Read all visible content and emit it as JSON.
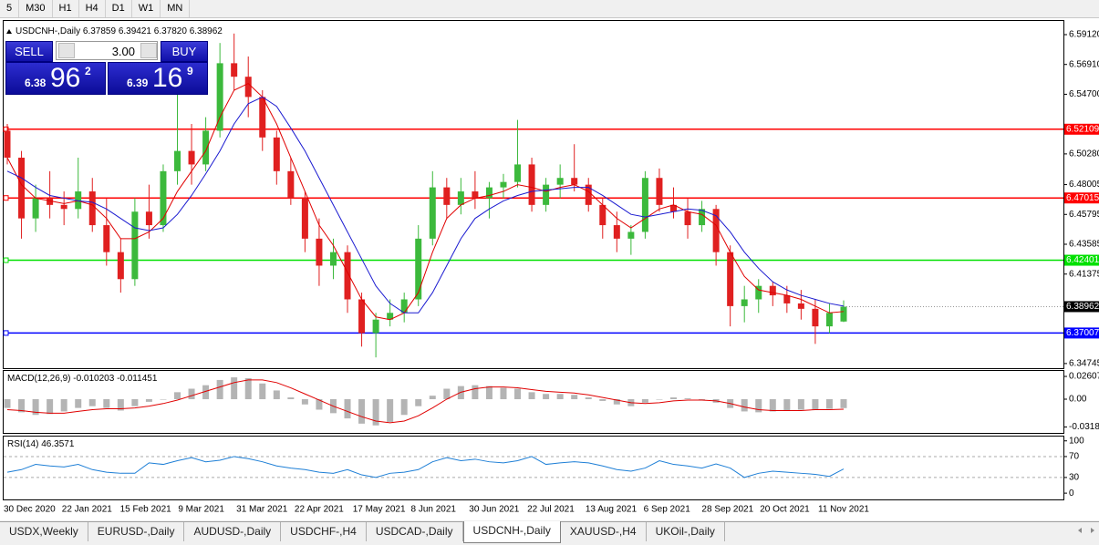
{
  "toolbar": {
    "timeframes": [
      "5",
      "M30",
      "H1",
      "H4",
      "D1",
      "W1",
      "MN"
    ]
  },
  "trade_panel": {
    "sell": "SELL",
    "buy": "BUY",
    "lot": "3.00",
    "bid": {
      "big": "6.38",
      "pips": "96",
      "point": "2"
    },
    "ask": {
      "big": "6.39",
      "pips": "16",
      "point": "9"
    }
  },
  "chart_data": [
    {
      "type": "candlestick",
      "symbol": "USDCNH-,Daily",
      "header_values": [
        "6.37859",
        "6.39421",
        "6.37820",
        "6.38962"
      ],
      "up_color": "#3cb93c",
      "down_color": "#e02020",
      "candles": [
        [
          6.52,
          6.525,
          6.495,
          6.5
        ],
        [
          6.5,
          6.505,
          6.44,
          6.455
        ],
        [
          6.455,
          6.48,
          6.445,
          6.47
        ],
        [
          6.47,
          6.49,
          6.455,
          6.465
        ],
        [
          6.465,
          6.475,
          6.45,
          6.462
        ],
        [
          6.462,
          6.5,
          6.455,
          6.475
        ],
        [
          6.475,
          6.485,
          6.445,
          6.45
        ],
        [
          6.45,
          6.47,
          6.42,
          6.43
        ],
        [
          6.43,
          6.44,
          6.4,
          6.41
        ],
        [
          6.41,
          6.47,
          6.405,
          6.46
        ],
        [
          6.46,
          6.48,
          6.44,
          6.45
        ],
        [
          6.45,
          6.495,
          6.445,
          6.49
        ],
        [
          6.49,
          6.55,
          6.48,
          6.505
        ],
        [
          6.505,
          6.525,
          6.48,
          6.495
        ],
        [
          6.495,
          6.53,
          6.49,
          6.52
        ],
        [
          6.52,
          6.585,
          6.515,
          6.57
        ],
        [
          6.57,
          6.592,
          6.55,
          6.56
        ],
        [
          6.56,
          6.575,
          6.53,
          6.545
        ],
        [
          6.545,
          6.55,
          6.505,
          6.515
        ],
        [
          6.515,
          6.52,
          6.48,
          6.49
        ],
        [
          6.49,
          6.5,
          6.465,
          6.47
        ],
        [
          6.47,
          6.475,
          6.43,
          6.44
        ],
        [
          6.44,
          6.455,
          6.405,
          6.42
        ],
        [
          6.42,
          6.44,
          6.41,
          6.43
        ],
        [
          6.43,
          6.435,
          6.385,
          6.395
        ],
        [
          6.395,
          6.4,
          6.36,
          6.37
        ],
        [
          6.37,
          6.385,
          6.352,
          6.38
        ],
        [
          6.38,
          6.395,
          6.375,
          6.385
        ],
        [
          6.385,
          6.4,
          6.378,
          6.395
        ],
        [
          6.395,
          6.45,
          6.39,
          6.44
        ],
        [
          6.44,
          6.49,
          6.435,
          6.478
        ],
        [
          6.478,
          6.485,
          6.455,
          6.465
        ],
        [
          6.465,
          6.485,
          6.458,
          6.475
        ],
        [
          6.475,
          6.49,
          6.462,
          6.47
        ],
        [
          6.47,
          6.482,
          6.455,
          6.478
        ],
        [
          6.478,
          6.488,
          6.47,
          6.482
        ],
        [
          6.482,
          6.528,
          6.478,
          6.495
        ],
        [
          6.495,
          6.5,
          6.46,
          6.465
        ],
        [
          6.465,
          6.485,
          6.46,
          6.48
        ],
        [
          6.48,
          6.495,
          6.47,
          6.485
        ],
        [
          6.485,
          6.51,
          6.475,
          6.48
        ],
        [
          6.48,
          6.485,
          6.46,
          6.465
        ],
        [
          6.465,
          6.47,
          6.44,
          6.45
        ],
        [
          6.45,
          6.46,
          6.43,
          6.44
        ],
        [
          6.44,
          6.45,
          6.428,
          6.445
        ],
        [
          6.445,
          6.49,
          6.44,
          6.485
        ],
        [
          6.485,
          6.492,
          6.46,
          6.465
        ],
        [
          6.465,
          6.478,
          6.455,
          6.46
        ],
        [
          6.46,
          6.47,
          6.44,
          6.45
        ],
        [
          6.45,
          6.468,
          6.445,
          6.462
        ],
        [
          6.462,
          6.465,
          6.42,
          6.43
        ],
        [
          6.43,
          6.435,
          6.375,
          6.39
        ],
        [
          6.39,
          6.405,
          6.378,
          6.395
        ],
        [
          6.395,
          6.41,
          6.385,
          6.405
        ],
        [
          6.405,
          6.408,
          6.39,
          6.398
        ],
        [
          6.398,
          6.405,
          6.385,
          6.392
        ],
        [
          6.392,
          6.402,
          6.38,
          6.388
        ],
        [
          6.388,
          6.395,
          6.362,
          6.375
        ],
        [
          6.375,
          6.392,
          6.37,
          6.385
        ],
        [
          6.37859,
          6.39421,
          6.3782,
          6.38962
        ]
      ],
      "ma_fast": {
        "color": "#e00000",
        "values": [
          6.5,
          6.48,
          6.47,
          6.468,
          6.466,
          6.468,
          6.465,
          6.455,
          6.44,
          6.44,
          6.445,
          6.455,
          6.475,
          6.49,
          6.505,
          6.53,
          6.55,
          6.555,
          6.545,
          6.525,
          6.5,
          6.475,
          6.45,
          6.435,
          6.415,
          6.395,
          6.382,
          6.38,
          6.385,
          6.4,
          6.43,
          6.455,
          6.465,
          6.47,
          6.472,
          6.475,
          6.48,
          6.478,
          6.475,
          6.478,
          6.48,
          6.475,
          6.465,
          6.455,
          6.448,
          6.455,
          6.462,
          6.465,
          6.46,
          6.458,
          6.45,
          6.43,
          6.412,
          6.402,
          6.4,
          6.398,
          6.395,
          6.39,
          6.385,
          6.386
        ]
      },
      "ma_slow": {
        "color": "#1a1ad0",
        "values": [
          6.49,
          6.485,
          6.478,
          6.472,
          6.47,
          6.468,
          6.467,
          6.462,
          6.455,
          6.448,
          6.446,
          6.448,
          6.458,
          6.472,
          6.488,
          6.505,
          6.525,
          6.54,
          6.545,
          6.538,
          6.522,
          6.505,
          6.485,
          6.465,
          6.445,
          6.425,
          6.405,
          6.392,
          6.385,
          6.385,
          6.4,
          6.42,
          6.44,
          6.455,
          6.462,
          6.468,
          6.472,
          6.475,
          6.476,
          6.477,
          6.478,
          6.478,
          6.472,
          6.465,
          6.458,
          6.456,
          6.458,
          6.46,
          6.462,
          6.461,
          6.457,
          6.445,
          6.43,
          6.418,
          6.408,
          6.402,
          6.398,
          6.395,
          6.392,
          6.39
        ]
      },
      "levels": [
        {
          "value": 6.52109,
          "color": "#ff0000"
        },
        {
          "value": 6.47015,
          "color": "#ff0000"
        },
        {
          "value": 6.42401,
          "color": "#00e000"
        },
        {
          "value": 6.37007,
          "color": "#0000ff"
        }
      ],
      "ylim": [
        6.344,
        6.602
      ],
      "yticks": [
        {
          "value": 6.5912,
          "label": "6.59120"
        },
        {
          "value": 6.5691,
          "label": "6.56910"
        },
        {
          "value": 6.547,
          "label": "6.54700"
        },
        {
          "value": 6.5028,
          "label": "6.50280"
        },
        6.48005,
        6.45795,
        6.43585,
        6.41375,
        6.34745
      ],
      "x_labels": [
        "30 Dec 2020",
        "22 Jan 2021",
        "15 Feb 2021",
        "9 Mar 2021",
        "31 Mar 2021",
        "22 Apr 2021",
        "17 May 2021",
        "8 Jun 2021",
        "30 Jun 2021",
        "22 Jul 2021",
        "13 Aug 2021",
        "6 Sep 2021",
        "28 Sep 2021",
        "20 Oct 2021",
        "11 Nov 2021"
      ]
    },
    {
      "type": "macd",
      "label": "MACD(12,26,9)",
      "bar_color": "#b4b4b4",
      "signal_color": "#e00000",
      "main": [
        -0.01,
        -0.015,
        -0.018,
        -0.017,
        -0.014,
        -0.01,
        -0.008,
        -0.01,
        -0.013,
        -0.008,
        -0.003,
        0.0,
        0.008,
        0.012,
        0.016,
        0.022,
        0.025,
        0.024,
        0.018,
        0.01,
        0.002,
        -0.006,
        -0.012,
        -0.016,
        -0.022,
        -0.028,
        -0.03,
        -0.026,
        -0.018,
        -0.008,
        0.004,
        0.012,
        0.015,
        0.016,
        0.015,
        0.013,
        0.012,
        0.008,
        0.006,
        0.006,
        0.005,
        0.002,
        -0.002,
        -0.006,
        -0.008,
        -0.004,
        0.0,
        0.002,
        0.001,
        -0.001,
        -0.004,
        -0.01,
        -0.014,
        -0.015,
        -0.014,
        -0.013,
        -0.012,
        -0.012,
        -0.011,
        -0.010203
      ],
      "signal": [
        -0.012,
        -0.013,
        -0.015,
        -0.016,
        -0.016,
        -0.014,
        -0.012,
        -0.011,
        -0.011,
        -0.01,
        -0.008,
        -0.005,
        -0.001,
        0.004,
        0.009,
        0.014,
        0.019,
        0.022,
        0.022,
        0.019,
        0.013,
        0.006,
        -0.001,
        -0.008,
        -0.014,
        -0.02,
        -0.025,
        -0.027,
        -0.025,
        -0.019,
        -0.01,
        0.0,
        0.008,
        0.012,
        0.014,
        0.014,
        0.013,
        0.011,
        0.009,
        0.008,
        0.007,
        0.005,
        0.002,
        -0.001,
        -0.004,
        -0.005,
        -0.004,
        -0.002,
        -0.001,
        -0.001,
        -0.002,
        -0.005,
        -0.009,
        -0.012,
        -0.013,
        -0.013,
        -0.013,
        -0.012,
        -0.012,
        -0.011451
      ],
      "ylim": [
        -0.0386,
        0.0334
      ],
      "yticks": [
        0.02607,
        {
          "value": 0,
          "label": "0.00"
        },
        -0.03187
      ]
    },
    {
      "type": "line",
      "label": "RSI(14)",
      "color": "#1e7fd6",
      "values": [
        40,
        45,
        55,
        52,
        50,
        55,
        45,
        40,
        38,
        38,
        58,
        55,
        62,
        68,
        60,
        63,
        70,
        66,
        60,
        52,
        48,
        45,
        40,
        38,
        45,
        35,
        30,
        38,
        40,
        45,
        60,
        68,
        62,
        65,
        60,
        58,
        62,
        70,
        55,
        58,
        60,
        58,
        52,
        45,
        42,
        48,
        62,
        55,
        52,
        48,
        56,
        48,
        30,
        38,
        42,
        40,
        38,
        36,
        32,
        46.3571
      ],
      "levels": [
        70,
        30
      ],
      "ylim": [
        -12,
        110
      ],
      "yticks": [
        100,
        70,
        30,
        0
      ]
    }
  ],
  "tabs": [
    "USDX,Weekly",
    "EURUSD-,Daily",
    "AUDUSD-,Daily",
    "USDCHF-,H4",
    "USDCAD-,Daily",
    "USDCNH-,Daily",
    "XAUUSD-,H4",
    "UKOil-,Daily"
  ],
  "active_tab": 5
}
